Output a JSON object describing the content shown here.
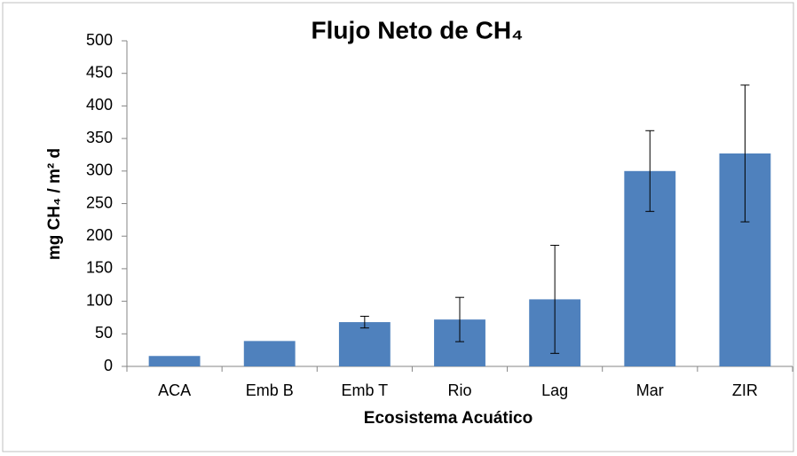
{
  "chart_data": {
    "type": "bar",
    "title": "Flujo Neto de CH₄",
    "x_label": "Ecosistema Acuático",
    "y_label": "mg CH₄ / m² d",
    "categories": [
      "ACA",
      "Emb B",
      "Emb T",
      "Rio",
      "Lag",
      "Mar",
      "ZIR"
    ],
    "values": [
      16,
      39,
      68,
      72,
      103,
      300,
      327
    ],
    "errors": [
      null,
      null,
      9,
      34,
      83,
      62,
      105
    ],
    "color": "#4f81bd",
    "ylim": [
      0,
      500
    ],
    "yticks": [
      0,
      50,
      100,
      150,
      200,
      250,
      300,
      350,
      400,
      450,
      500
    ],
    "grid": false
  }
}
